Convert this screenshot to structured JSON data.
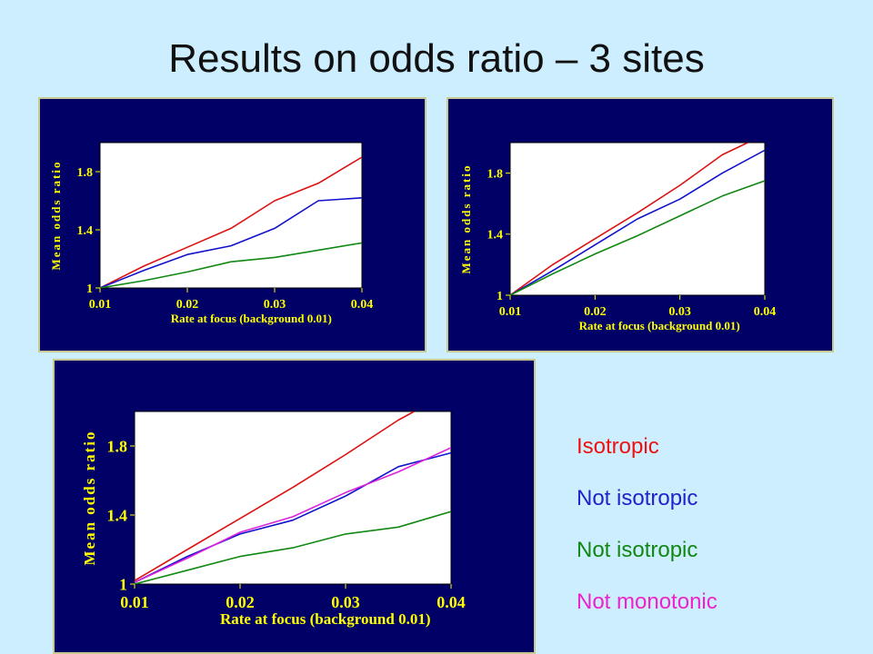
{
  "title": "Results on odds ratio – 3 sites",
  "legend": [
    {
      "label": "Isotropic",
      "color": "#ee1111"
    },
    {
      "label": "Not isotropic",
      "color": "#2222cc"
    },
    {
      "label": "Not isotropic",
      "color": "#118811"
    },
    {
      "label": "Not monotonic",
      "color": "#ee22cc"
    }
  ],
  "colors": {
    "background": "#cceeff",
    "panel": "#000066",
    "plot_area": "#ffffff",
    "axis_text": "#ffff00",
    "red": "#dd1111",
    "blue": "#1111cc",
    "green": "#118811",
    "magenta": "#dd22dd"
  },
  "chart_data": [
    {
      "type": "line",
      "xlabel": "Rate at focus (background 0.01)",
      "ylabel": "Mean odds ratio",
      "xlim": [
        0.01,
        0.04
      ],
      "ylim": [
        1,
        2
      ],
      "xticks": [
        "0.01",
        "0.02",
        "0.03",
        "0.04"
      ],
      "yticks": [
        "1",
        "1.4",
        "1.8"
      ],
      "series": [
        {
          "color": "#dd1111",
          "x": [
            0.01,
            0.015,
            0.02,
            0.025,
            0.03,
            0.035,
            0.04
          ],
          "y": [
            1.0,
            1.15,
            1.28,
            1.41,
            1.6,
            1.72,
            1.9
          ]
        },
        {
          "color": "#1111cc",
          "x": [
            0.01,
            0.015,
            0.02,
            0.025,
            0.03,
            0.035,
            0.04
          ],
          "y": [
            1.0,
            1.12,
            1.23,
            1.29,
            1.41,
            1.6,
            1.62
          ]
        },
        {
          "color": "#118811",
          "x": [
            0.01,
            0.015,
            0.02,
            0.025,
            0.03,
            0.035,
            0.04
          ],
          "y": [
            1.0,
            1.05,
            1.11,
            1.18,
            1.21,
            1.26,
            1.31
          ]
        }
      ]
    },
    {
      "type": "line",
      "xlabel": "Rate at focus (background 0.01)",
      "ylabel": "Mean odds ratio",
      "xlim": [
        0.01,
        0.04
      ],
      "ylim": [
        1,
        2
      ],
      "xticks": [
        "0.01",
        "0.02",
        "0.03",
        "0.04"
      ],
      "yticks": [
        "1",
        "1.4",
        "1.8"
      ],
      "series": [
        {
          "color": "#dd1111",
          "x": [
            0.01,
            0.015,
            0.02,
            0.025,
            0.03,
            0.035,
            0.038
          ],
          "y": [
            1.0,
            1.2,
            1.37,
            1.54,
            1.72,
            1.92,
            2.0
          ]
        },
        {
          "color": "#1111cc",
          "x": [
            0.01,
            0.015,
            0.02,
            0.025,
            0.03,
            0.035,
            0.04
          ],
          "y": [
            1.0,
            1.16,
            1.33,
            1.5,
            1.63,
            1.8,
            1.95
          ]
        },
        {
          "color": "#118811",
          "x": [
            0.01,
            0.015,
            0.02,
            0.025,
            0.03,
            0.035,
            0.04
          ],
          "y": [
            1.0,
            1.14,
            1.27,
            1.39,
            1.52,
            1.65,
            1.75
          ]
        }
      ]
    },
    {
      "type": "line",
      "xlabel": "Rate at focus (background 0.01)",
      "ylabel": "Mean odds ratio",
      "xlim": [
        0.01,
        0.04
      ],
      "ylim": [
        1,
        2
      ],
      "xticks": [
        "0.01",
        "0.02",
        "0.03",
        "0.04"
      ],
      "yticks": [
        "1",
        "1.4",
        "1.8"
      ],
      "series": [
        {
          "color": "#dd1111",
          "x": [
            0.01,
            0.015,
            0.02,
            0.025,
            0.03,
            0.035,
            0.0365
          ],
          "y": [
            1.02,
            1.2,
            1.38,
            1.56,
            1.75,
            1.95,
            2.0
          ]
        },
        {
          "color": "#1111cc",
          "x": [
            0.01,
            0.015,
            0.02,
            0.025,
            0.03,
            0.035,
            0.04
          ],
          "y": [
            1.01,
            1.16,
            1.29,
            1.37,
            1.51,
            1.68,
            1.76
          ]
        },
        {
          "color": "#118811",
          "x": [
            0.01,
            0.015,
            0.02,
            0.025,
            0.03,
            0.035,
            0.04
          ],
          "y": [
            1.0,
            1.08,
            1.16,
            1.21,
            1.29,
            1.33,
            1.42
          ]
        },
        {
          "color": "#dd22dd",
          "x": [
            0.01,
            0.015,
            0.02,
            0.025,
            0.03,
            0.035,
            0.04
          ],
          "y": [
            1.01,
            1.15,
            1.3,
            1.39,
            1.53,
            1.65,
            1.79
          ]
        }
      ]
    }
  ]
}
